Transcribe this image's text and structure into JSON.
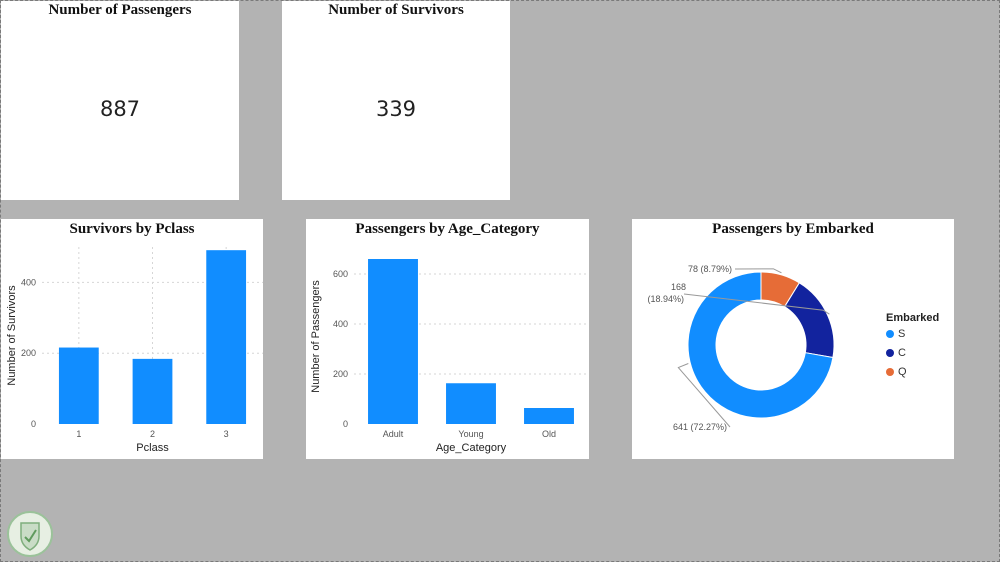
{
  "kpi": [
    {
      "title": "Number of Passengers",
      "value": "887"
    },
    {
      "title": "Number of Survivors",
      "value": "339"
    }
  ],
  "legend": {
    "title": "Embarked",
    "items": [
      {
        "label": "S",
        "color": "#118DFF"
      },
      {
        "label": "C",
        "color": "#12239E"
      },
      {
        "label": "Q",
        "color": "#E66C37"
      }
    ]
  },
  "chart_data": [
    {
      "type": "bar",
      "title": "Survivors by Pclass",
      "xlabel": "Pclass",
      "ylabel": "Number of Survivors",
      "categories": [
        "1",
        "2",
        "3"
      ],
      "values": [
        216,
        184,
        491
      ],
      "ylim": [
        0,
        500
      ],
      "yticks": [
        "0",
        "200",
        "400"
      ],
      "ytick_values": [
        0,
        200,
        400
      ],
      "grid": true,
      "color": "#118DFF"
    },
    {
      "type": "bar",
      "title": "Passengers by Age_Category",
      "xlabel": "Age_Category",
      "ylabel": "Number of Passengers",
      "categories": [
        "Adult",
        "Young",
        "Old"
      ],
      "values": [
        660,
        163,
        64
      ],
      "ylim": [
        0,
        700
      ],
      "yticks": [
        "0",
        "200",
        "400",
        "600"
      ],
      "ytick_values": [
        0,
        200,
        400,
        600
      ],
      "grid": true,
      "color": "#118DFF"
    },
    {
      "type": "pie",
      "title": "Passengers by Embarked",
      "categories": [
        "S",
        "C",
        "Q"
      ],
      "values": [
        641,
        168,
        78
      ],
      "data_labels": [
        "641 (72.27%)",
        "168",
        "78 (8.79%)"
      ],
      "data_label_extra": [
        "",
        "(18.94%)",
        ""
      ],
      "colors": [
        "#118DFF",
        "#12239E",
        "#E66C37"
      ],
      "legend": "right"
    }
  ]
}
